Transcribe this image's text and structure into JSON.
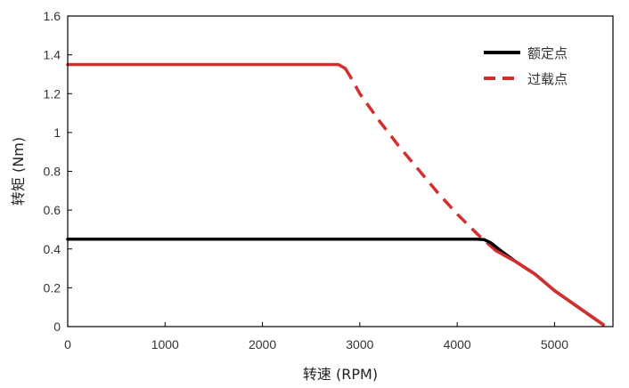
{
  "chart_data": {
    "type": "line",
    "xlabel": "转速 (RPM)",
    "ylabel": "转矩 (Nm)",
    "xlim": [
      0,
      5600
    ],
    "ylim": [
      0,
      1.6
    ],
    "xticks": [
      0,
      1000,
      2000,
      3000,
      4000,
      5000
    ],
    "xtick_labels": [
      "0",
      "1000",
      "2000",
      "3000",
      "4000",
      "5000"
    ],
    "yticks": [
      0,
      0.2,
      0.4,
      0.6,
      0.8,
      1,
      1.2,
      1.4,
      1.6
    ],
    "ytick_labels": [
      "0",
      "0.2",
      "0.4",
      "0.6",
      "0.8",
      "1",
      "1.2",
      "1.4",
      "1.6"
    ],
    "grid": false,
    "legend_position": "top-right",
    "series": [
      {
        "name": "额定点",
        "color": "#000000",
        "line_style": "solid",
        "x": [
          0,
          500,
          1000,
          1500,
          2000,
          2500,
          3000,
          3500,
          4000,
          4200,
          4280,
          4350,
          4450,
          4600,
          4800,
          5000,
          5200,
          5400,
          5500
        ],
        "y": [
          0.45,
          0.45,
          0.45,
          0.45,
          0.45,
          0.45,
          0.45,
          0.45,
          0.45,
          0.45,
          0.448,
          0.43,
          0.39,
          0.335,
          0.27,
          0.185,
          0.115,
          0.045,
          0.01
        ]
      },
      {
        "name": "过载点",
        "color": "#d32f2f",
        "line_style": "solid-then-dashed",
        "x": [
          0,
          500,
          1000,
          1500,
          2000,
          2500,
          2700,
          2780,
          2850,
          2900,
          3000,
          3200,
          3400,
          3600,
          3800,
          4000,
          4200,
          4400,
          4600,
          4800,
          5000,
          5200,
          5400,
          5500
        ],
        "y": [
          1.35,
          1.35,
          1.35,
          1.35,
          1.35,
          1.35,
          1.35,
          1.35,
          1.33,
          1.29,
          1.2,
          1.06,
          0.93,
          0.81,
          0.69,
          0.58,
          0.48,
          0.39,
          0.335,
          0.27,
          0.185,
          0.115,
          0.045,
          0.01
        ]
      }
    ]
  }
}
